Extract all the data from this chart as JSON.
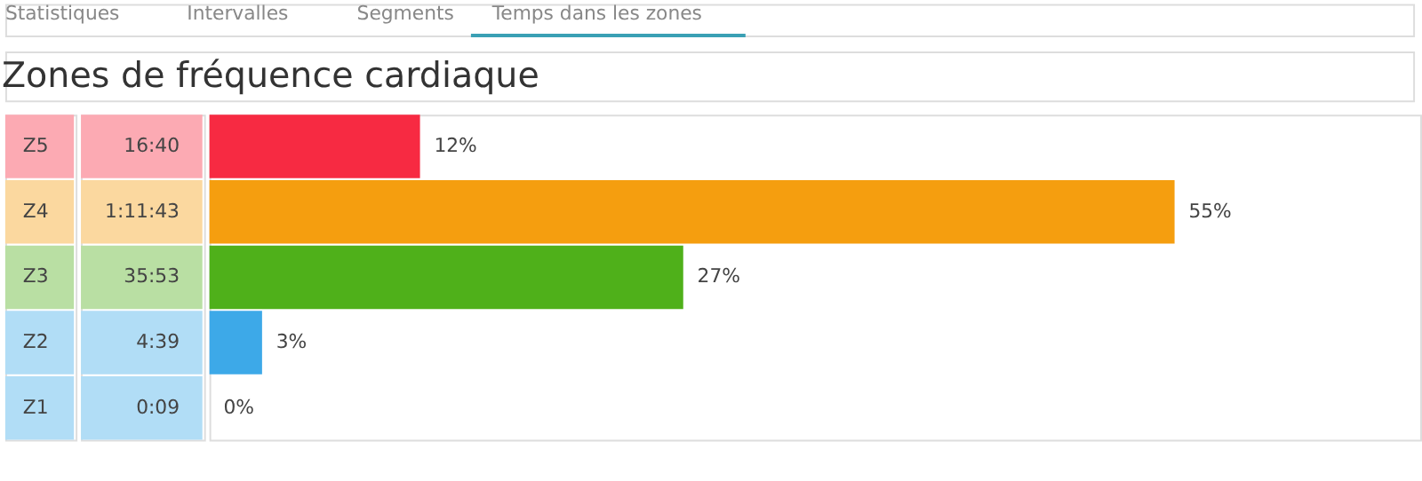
{
  "chart_data": {
    "type": "bar",
    "orientation": "horizontal",
    "title": "Zones de fréquence cardiaque",
    "categories": [
      "Z5",
      "Z4",
      "Z3",
      "Z2",
      "Z1"
    ],
    "values": [
      12,
      55,
      27,
      3,
      0
    ],
    "value_labels": [
      "12%",
      "55%",
      "27%",
      "3%",
      "0%"
    ],
    "colors": [
      "#f72a42",
      "#f59e0f",
      "#4fb01a",
      "#3da9e8",
      "#3da9e8"
    ],
    "xlim": [
      0,
      69
    ],
    "tick_labels": "y",
    "grid": false,
    "annotations": [
      "Statistiques",
      "Intervalles",
      "Segments",
      "Temps dans les zones",
      "16:40",
      "1:11:43",
      "35:53",
      "4:39",
      "0:09"
    ]
  }
}
